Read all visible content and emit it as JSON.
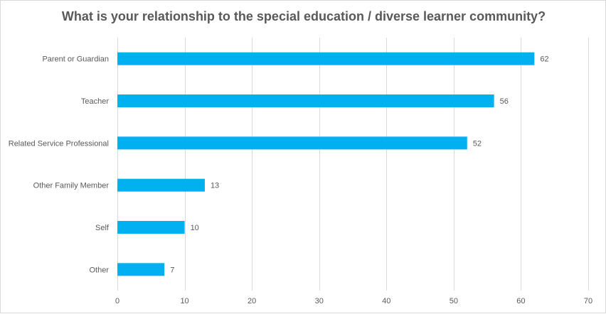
{
  "chart_data": {
    "type": "bar",
    "orientation": "horizontal",
    "title": "What is your relationship to the special education / diverse learner community?",
    "categories": [
      "Parent or Guardian",
      "Teacher",
      "Related Service Professional",
      "Other Family Member",
      "Self",
      "Other"
    ],
    "values": [
      62,
      56,
      52,
      13,
      10,
      7
    ],
    "xlim": [
      0,
      70
    ],
    "xticks": [
      0,
      10,
      20,
      30,
      40,
      50,
      60,
      70
    ],
    "grid": "vertical",
    "legend": "none",
    "bar_color": "#00b0f0"
  }
}
